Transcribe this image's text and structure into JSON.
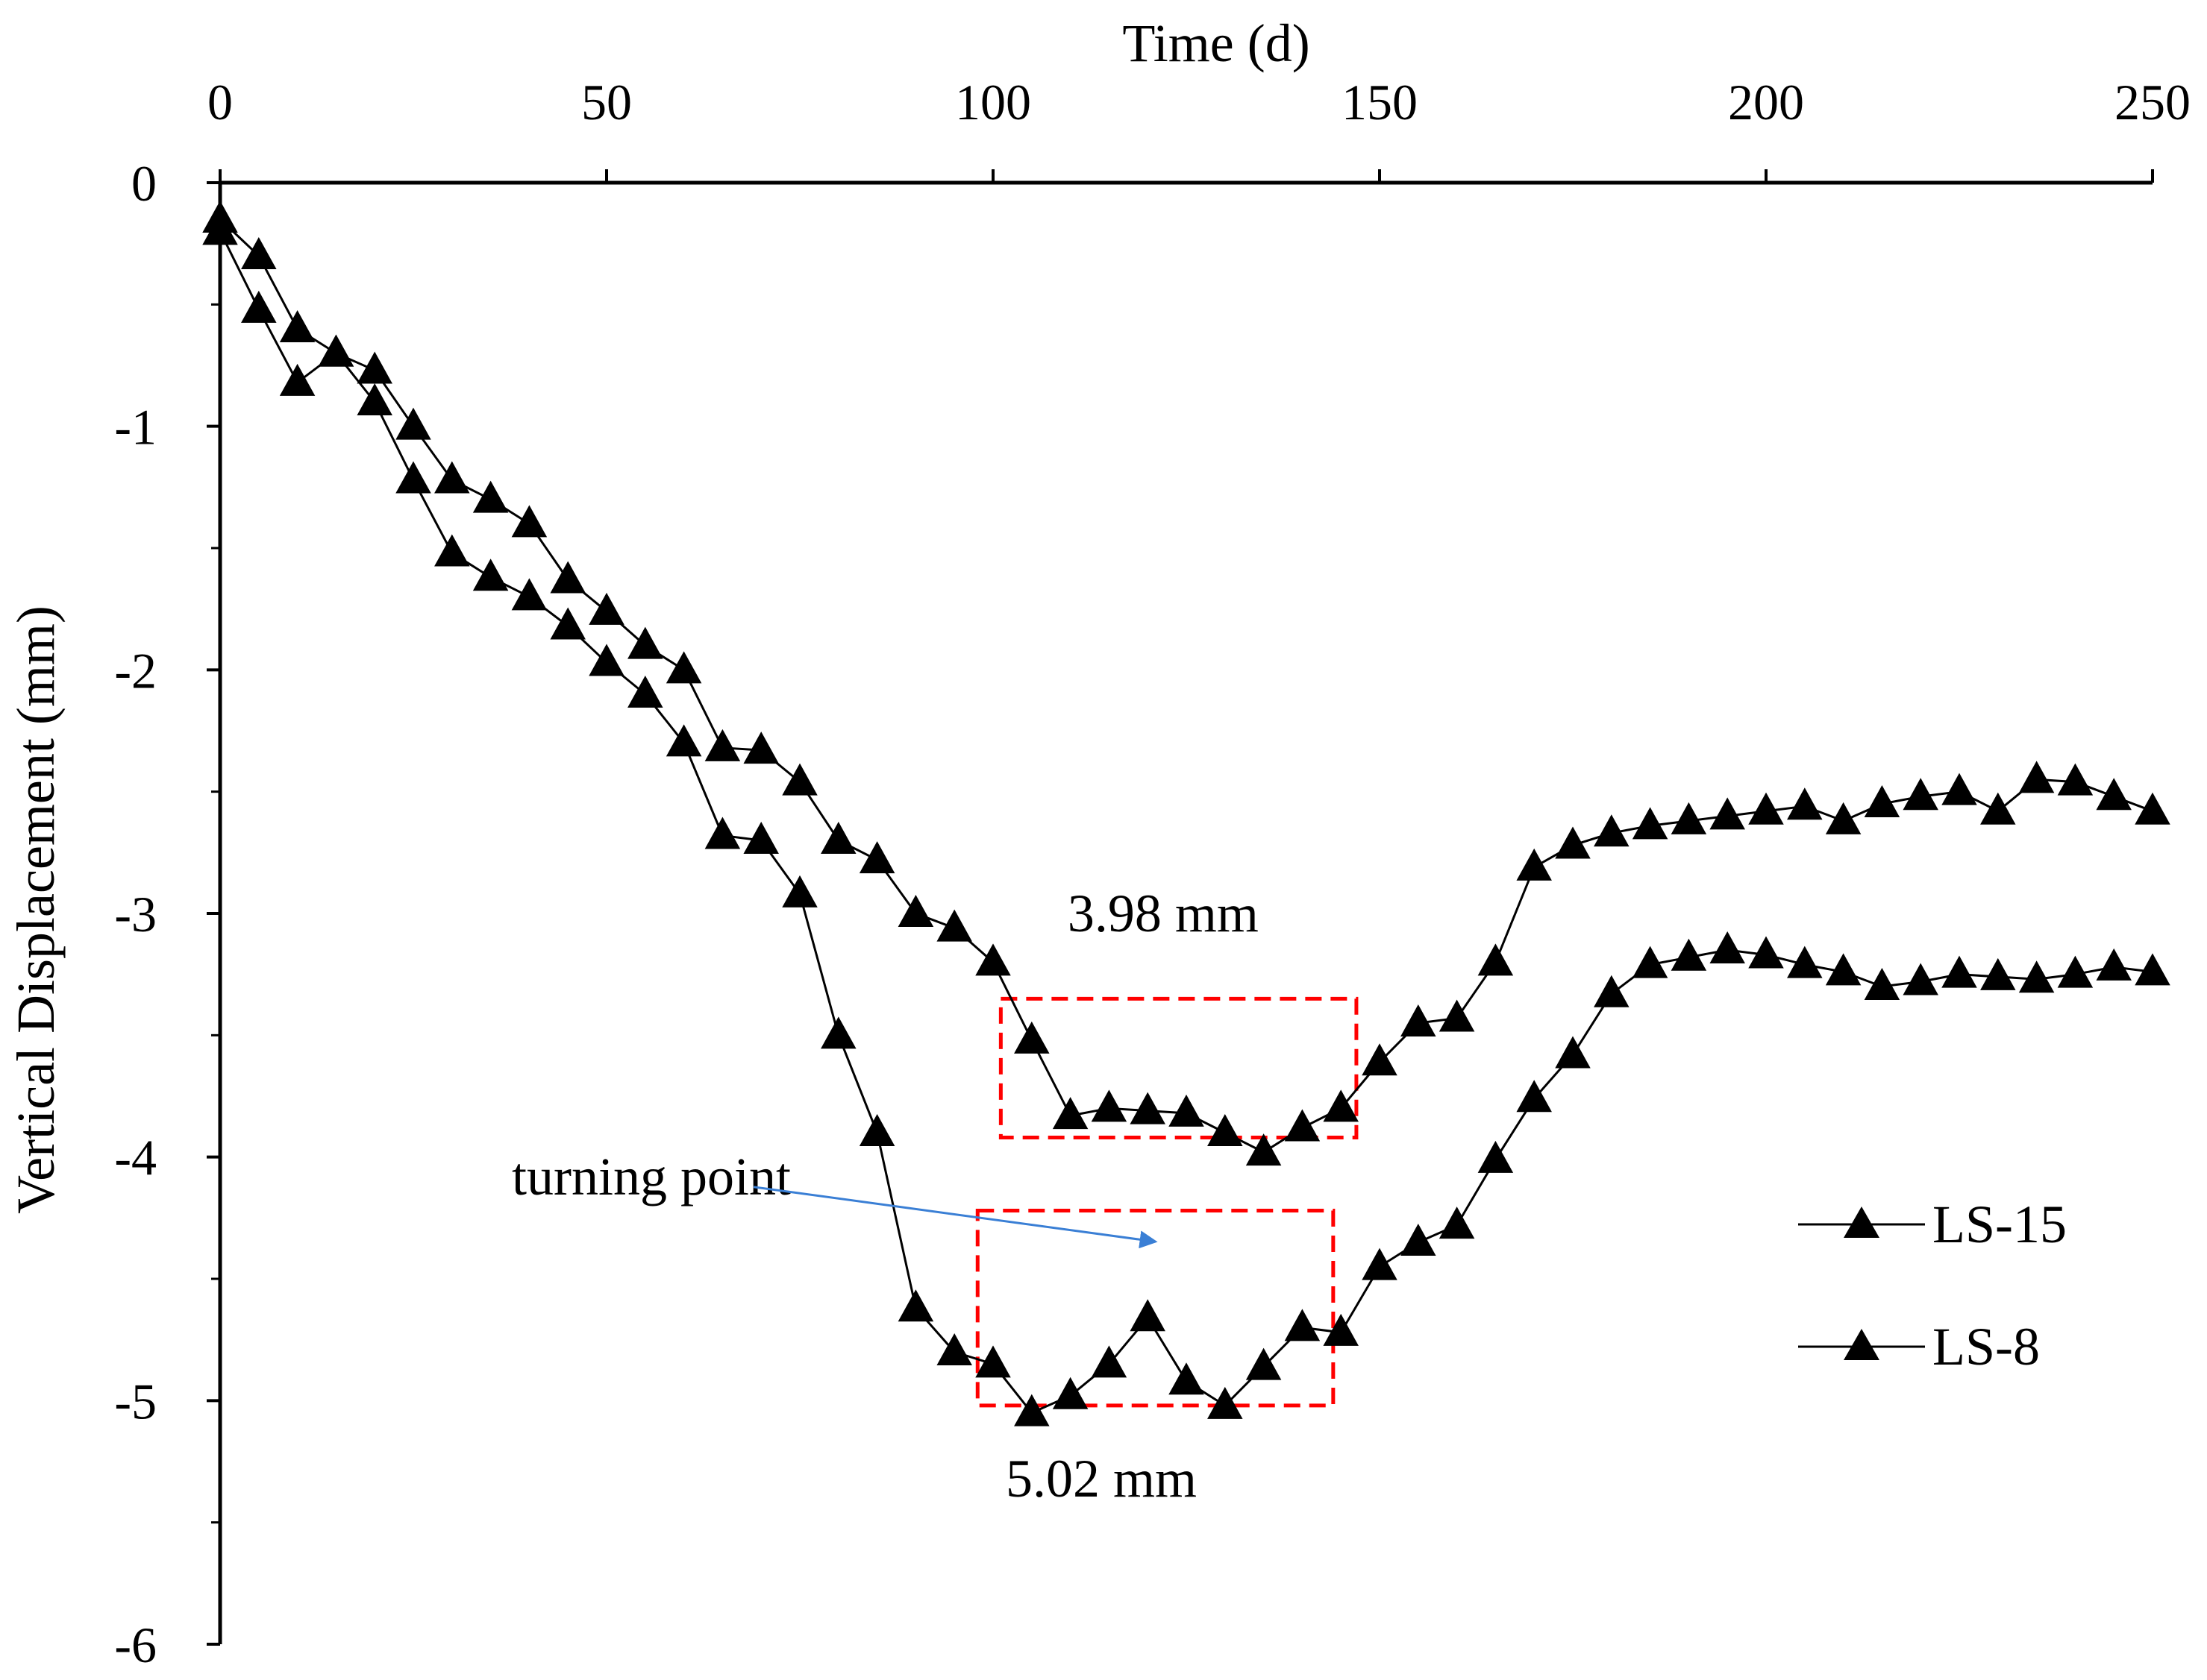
{
  "chart_data": {
    "type": "line",
    "title": "",
    "xlabel": "Time (d)",
    "ylabel": "Vertical Displacement (mm)",
    "xlim": [
      0,
      250
    ],
    "ylim": [
      -6,
      0
    ],
    "x_ticks": [
      "0",
      "50",
      "100",
      "150",
      "200",
      "250"
    ],
    "y_ticks": [
      "0",
      "-1",
      "-2",
      "-3",
      "-4",
      "-5",
      "-6"
    ],
    "x_axis_position": "top",
    "grid": false,
    "legend_position": "right",
    "series": [
      {
        "name": "LS-15",
        "marker": "triangle",
        "x": [
          0,
          5,
          10,
          15,
          20,
          25,
          30,
          35,
          40,
          45,
          50,
          55,
          60,
          65,
          70,
          75,
          80,
          85,
          90,
          95,
          100,
          105,
          110,
          115,
          120,
          125,
          130,
          135,
          140,
          145,
          150,
          155,
          160,
          165,
          170,
          175,
          180,
          185,
          190,
          195,
          200,
          205,
          210,
          215,
          220,
          225,
          230,
          235,
          240,
          245,
          250
        ],
        "y": [
          -0.15,
          -0.3,
          -0.6,
          -0.7,
          -0.9,
          -1.22,
          -1.52,
          -1.62,
          -1.7,
          -1.82,
          -1.97,
          -2.1,
          -2.3,
          -2.68,
          -2.7,
          -2.92,
          -3.5,
          -3.9,
          -4.62,
          -4.8,
          -4.85,
          -5.05,
          -4.98,
          -4.85,
          -4.66,
          -4.92,
          -5.02,
          -4.86,
          -4.7,
          -4.72,
          -4.45,
          -4.35,
          -4.28,
          -4.01,
          -3.76,
          -3.58,
          -3.33,
          -3.21,
          -3.18,
          -3.15,
          -3.17,
          -3.21,
          -3.24,
          -3.3,
          -3.28,
          -3.25,
          -3.26,
          -3.27,
          -3.25,
          -3.22,
          -3.24
        ]
      },
      {
        "name": "LS-8",
        "marker": "triangle",
        "x": [
          0,
          5,
          10,
          15,
          20,
          25,
          30,
          35,
          40,
          45,
          50,
          55,
          60,
          65,
          70,
          75,
          80,
          85,
          90,
          95,
          100,
          105,
          110,
          115,
          120,
          125,
          130,
          135,
          140,
          145,
          150,
          155,
          160,
          165,
          170,
          175,
          180,
          185,
          190,
          195,
          200,
          205,
          210,
          215,
          220,
          225,
          230,
          235,
          240,
          245,
          250
        ],
        "y": [
          -0.2,
          -0.52,
          -0.82,
          -0.7,
          -0.77,
          -1.0,
          -1.22,
          -1.3,
          -1.4,
          -1.63,
          -1.76,
          -1.9,
          -2.0,
          -2.32,
          -2.33,
          -2.46,
          -2.7,
          -2.78,
          -3.0,
          -3.06,
          -3.2,
          -3.52,
          -3.83,
          -3.8,
          -3.81,
          -3.82,
          -3.9,
          -3.98,
          -3.88,
          -3.8,
          -3.61,
          -3.45,
          -3.43,
          -3.2,
          -2.81,
          -2.72,
          -2.67,
          -2.64,
          -2.62,
          -2.6,
          -2.58,
          -2.56,
          -2.62,
          -2.55,
          -2.52,
          -2.5,
          -2.58,
          -2.45,
          -2.46,
          -2.52,
          -2.58
        ]
      }
    ],
    "annotations": [
      {
        "text": "3.98 mm",
        "x": 122,
        "y": -3.0
      },
      {
        "text": "5.02 mm",
        "x": 114,
        "y": -5.32
      },
      {
        "text": "turning point",
        "x": 50,
        "y": -4.08,
        "arrow_to": [
          121,
          -4.28
        ]
      }
    ],
    "highlight_boxes": [
      {
        "series": "LS-8",
        "x_range": [
          101,
          147
        ],
        "y_range": [
          -3.92,
          -3.35
        ]
      },
      {
        "series": "LS-15",
        "x_range": [
          98,
          144
        ],
        "y_range": [
          -5.02,
          -4.22
        ]
      }
    ],
    "colors": {
      "line": "#000000",
      "marker": "#000000",
      "box": "#ff0000",
      "arrow": "#3a7fd5"
    }
  }
}
